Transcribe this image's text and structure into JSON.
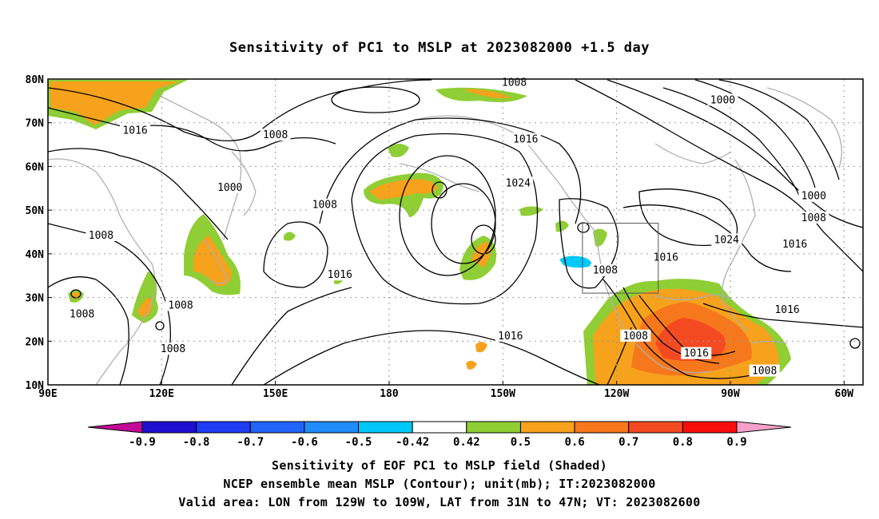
{
  "title": "Sensitivity of PC1 to MSLP at 2023082000 +1.5 day",
  "map": {
    "lon_min": 90,
    "lon_max": 305,
    "lat_min": 10,
    "lat_max": 80,
    "lat_ticks": [
      {
        "value": 80,
        "label": "80N"
      },
      {
        "value": 70,
        "label": "70N"
      },
      {
        "value": 60,
        "label": "60N"
      },
      {
        "value": 50,
        "label": "50N"
      },
      {
        "value": 40,
        "label": "40N"
      },
      {
        "value": 30,
        "label": "30N"
      },
      {
        "value": 20,
        "label": "20N"
      },
      {
        "value": 10,
        "label": "10N"
      }
    ],
    "lon_ticks": [
      {
        "value": 90,
        "label": "90E"
      },
      {
        "value": 120,
        "label": "120E"
      },
      {
        "value": 150,
        "label": "150E"
      },
      {
        "value": 180,
        "label": "180"
      },
      {
        "value": 210,
        "label": "150W"
      },
      {
        "value": 240,
        "label": "120W"
      },
      {
        "value": 270,
        "label": "90W"
      },
      {
        "value": 300,
        "label": "60W"
      }
    ],
    "grid": "dotted",
    "valid_box": {
      "lon0": 231,
      "lon1": 251,
      "lat0": 31,
      "lat1": 47
    },
    "contour_labels": [
      {
        "text": "1008",
        "lon": 213,
        "lat": 79
      },
      {
        "text": "1000",
        "lon": 268,
        "lat": 75
      },
      {
        "text": "1016",
        "lon": 113,
        "lat": 68
      },
      {
        "text": "1008",
        "lon": 150,
        "lat": 67
      },
      {
        "text": "1016",
        "lon": 216,
        "lat": 66
      },
      {
        "text": "1000",
        "lon": 138,
        "lat": 55
      },
      {
        "text": "1024",
        "lon": 214,
        "lat": 56
      },
      {
        "text": "1000",
        "lon": 292,
        "lat": 53
      },
      {
        "text": "1008",
        "lon": 163,
        "lat": 51
      },
      {
        "text": "1008",
        "lon": 292,
        "lat": 48
      },
      {
        "text": "1008",
        "lon": 104,
        "lat": 44
      },
      {
        "text": "1024",
        "lon": 269,
        "lat": 43
      },
      {
        "text": "1016",
        "lon": 287,
        "lat": 42
      },
      {
        "text": "1016",
        "lon": 253,
        "lat": 39
      },
      {
        "text": "1016",
        "lon": 167,
        "lat": 35
      },
      {
        "text": "1008",
        "lon": 237,
        "lat": 36
      },
      {
        "text": "1008",
        "lon": 125,
        "lat": 28
      },
      {
        "text": "1008",
        "lon": 99,
        "lat": 26
      },
      {
        "text": "1016",
        "lon": 285,
        "lat": 27
      },
      {
        "text": "1016",
        "lon": 212,
        "lat": 21
      },
      {
        "text": "1008",
        "lon": 245,
        "lat": 21
      },
      {
        "text": "1008",
        "lon": 123,
        "lat": 18
      },
      {
        "text": "1016",
        "lon": 261,
        "lat": 17
      },
      {
        "text": "1008",
        "lon": 279,
        "lat": 13
      }
    ]
  },
  "colorbar": {
    "labels": [
      "-0.9",
      "-0.8",
      "-0.7",
      "-0.6",
      "-0.5",
      "-0.42",
      "0.42",
      "0.5",
      "0.6",
      "0.7",
      "0.8",
      "0.9"
    ],
    "colors": [
      "#1e0fd0",
      "#1f3cf2",
      "#2065f7",
      "#1f8cf9",
      "#00c8f8",
      "#ffffff",
      "#8fce34",
      "#f7a21c",
      "#f7781c",
      "#f44a22",
      "#f80d0d"
    ],
    "low_end_color": "#c10a96",
    "high_end_color": "#f6a0c9"
  },
  "caption": {
    "line1": "Sensitivity of EOF PC1 to MSLP field (Shaded)",
    "line2": "NCEP ensemble mean MSLP (Contour); unit(mb); IT:2023082000",
    "line3": "Valid area: LON from 129W to 109W, LAT from 31N to 47N; VT: 2023082600"
  }
}
